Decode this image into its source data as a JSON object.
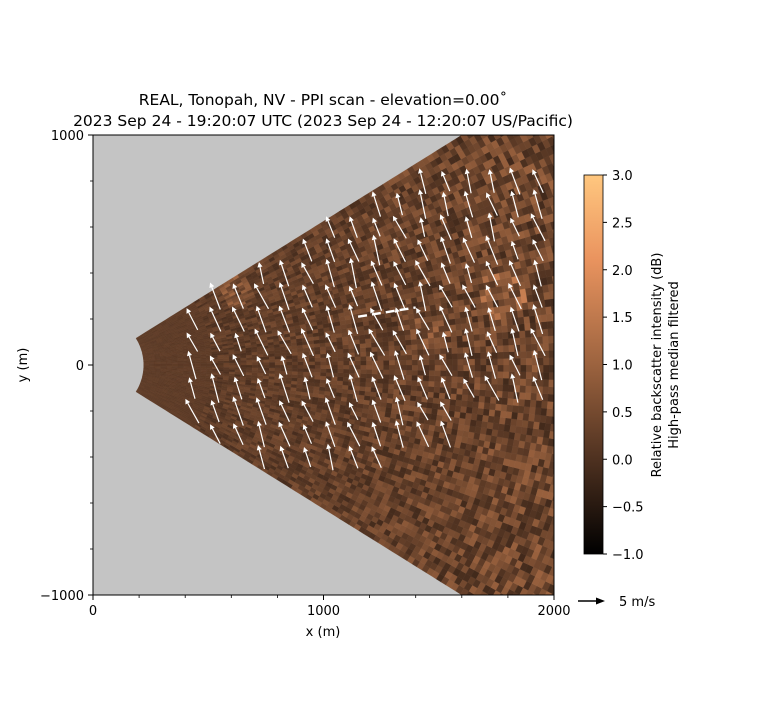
{
  "chart_data": {
    "type": "heatmap",
    "title": "REAL, Tonopah, NV - PPI scan - elevation=0.00$^\\circ$",
    "title_line1": "REAL, Tonopah, NV - PPI scan - elevation=0.00˚",
    "title_line2": "2023 Sep 24 - 19:20:07 UTC (2023 Sep 24 - 12:20:07 US/Pacific)",
    "xlabel": "x (m)",
    "ylabel": "y (m)",
    "xlim": [
      0,
      2000
    ],
    "ylim": [
      -1000,
      1000
    ],
    "x_ticks": [
      0,
      1000,
      2000
    ],
    "x_tick_labels": [
      "0",
      "1000",
      "2000"
    ],
    "y_ticks": [
      -1000,
      0,
      1000
    ],
    "y_tick_labels": [
      "−1000",
      "0",
      "1000"
    ],
    "background_color": "#c4c4c4",
    "scan": {
      "origin": [
        0,
        0
      ],
      "min_range_m": 220,
      "azimuth_half_width_deg": 32
    },
    "colorbar": {
      "label_line1": "Relative backscatter intensity (dB)",
      "label_line2": "High-pass median filtered",
      "range": [
        -1.0,
        3.0
      ],
      "ticks": [
        -1.0,
        -0.5,
        0.0,
        0.5,
        1.0,
        1.5,
        2.0,
        2.5,
        3.0
      ],
      "tick_labels": [
        "−1.0",
        "−0.5",
        "0.0",
        "0.5",
        "1.0",
        "1.5",
        "2.0",
        "2.5",
        "3.0"
      ],
      "colormap": "copper",
      "colors": [
        "#000000",
        "#4e3120",
        "#9c633f",
        "#ea945f",
        "#ffc77f"
      ]
    },
    "quiver_key": {
      "label": "5 m/s",
      "speed_mps": 5
    },
    "wind_field": {
      "u_mps": -1.6,
      "v_mps": 4.2,
      "color": "#ffffff"
    },
    "dashed_line": {
      "x": [
        1150,
        1400
      ],
      "y": [
        210,
        250
      ],
      "color": "#ffffff"
    }
  }
}
